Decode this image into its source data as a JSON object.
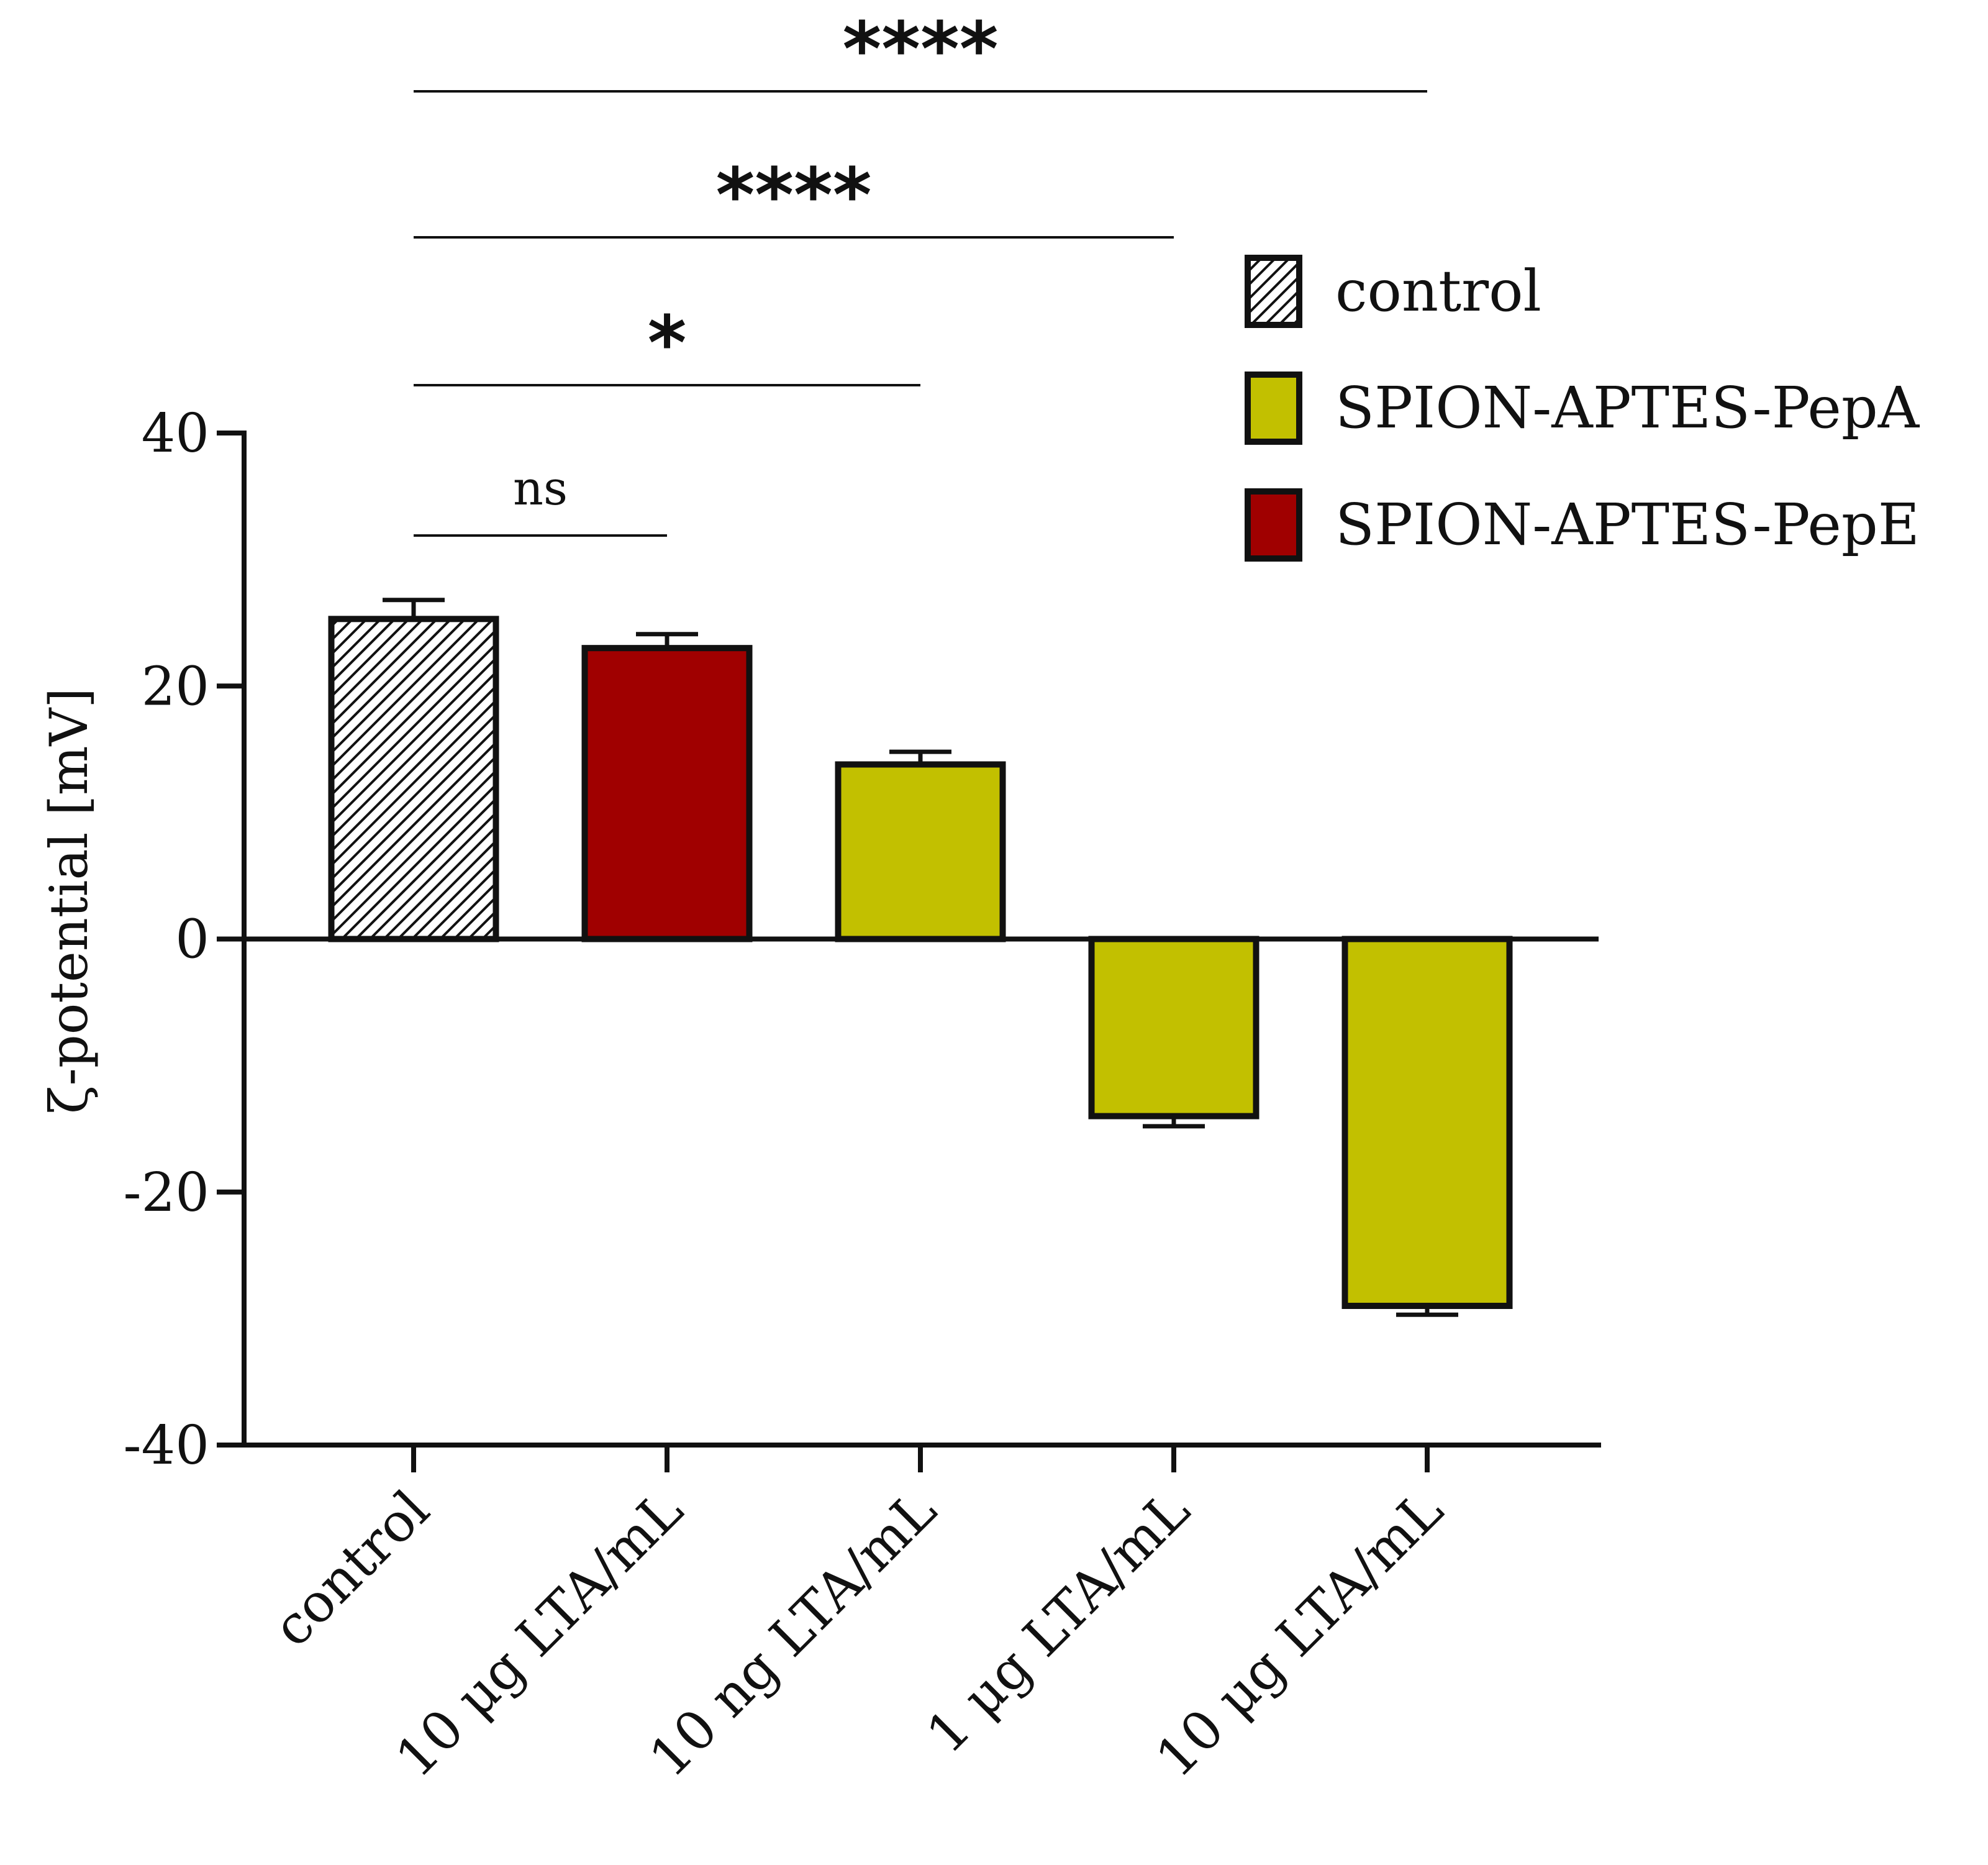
{
  "chart_data": {
    "type": "bar",
    "title": "",
    "xlabel": "",
    "ylabel": "ζ-potential [mV]",
    "ylim": [
      -40,
      40
    ],
    "yticks": [
      "40",
      "20",
      "0",
      "-20",
      "-40"
    ],
    "ytick_values": [
      40,
      20,
      0,
      -20,
      -40
    ],
    "categories": [
      "control",
      "10 μg LTA/mL",
      "10 ng LTA/mL",
      "1 μg LTA/mL",
      "10 μg LTA/mL"
    ],
    "values": [
      25.3,
      23.0,
      13.8,
      -14.0,
      -29.0
    ],
    "errors": [
      1.5,
      1.1,
      1.0,
      0.8,
      0.7
    ],
    "bar_series": [
      "control",
      "SPION-APTES-PepE",
      "SPION-APTES-PepA",
      "SPION-APTES-PepA",
      "SPION-APTES-PepA"
    ],
    "legend": {
      "position": "top-right",
      "entries": [
        {
          "label": "control",
          "color": "#ffffff",
          "pattern": "hatch"
        },
        {
          "label": "SPION-APTES-PepA",
          "color": "#c2c000",
          "pattern": "solid"
        },
        {
          "label": "SPION-APTES-PepE",
          "color": "#a00000",
          "pattern": "solid"
        }
      ]
    },
    "significance": [
      {
        "from": 0,
        "to": 1,
        "label": "ns"
      },
      {
        "from": 0,
        "to": 2,
        "label": "*"
      },
      {
        "from": 0,
        "to": 3,
        "label": "****"
      },
      {
        "from": 0,
        "to": 4,
        "label": "****"
      }
    ]
  }
}
